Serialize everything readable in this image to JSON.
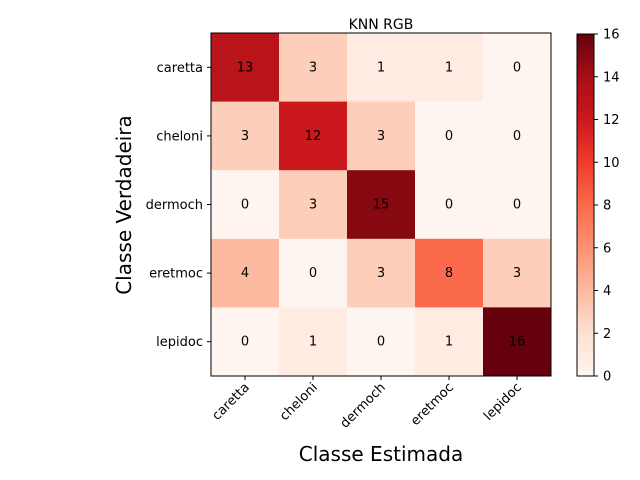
{
  "chart_data": {
    "type": "heatmap",
    "title": "KNN RGB",
    "xlabel": "Classe Estimada",
    "ylabel": "Classe Verdadeira",
    "x_categories": [
      "caretta",
      "cheloni",
      "dermoch",
      "eretmoc",
      "lepidoc"
    ],
    "y_categories": [
      "caretta",
      "cheloni",
      "dermoch",
      "eretmoc",
      "lepidoc"
    ],
    "values": [
      [
        13,
        3,
        1,
        1,
        0
      ],
      [
        3,
        12,
        3,
        0,
        0
      ],
      [
        0,
        3,
        15,
        0,
        0
      ],
      [
        4,
        0,
        3,
        8,
        3
      ],
      [
        0,
        1,
        0,
        1,
        16
      ]
    ],
    "colorbar": {
      "min": 0,
      "max": 16,
      "ticks": [
        "0",
        "2",
        "4",
        "6",
        "8",
        "10",
        "12",
        "14",
        "16"
      ],
      "colormap": "Reds"
    },
    "grid": false,
    "legend": "colorbar-right"
  }
}
